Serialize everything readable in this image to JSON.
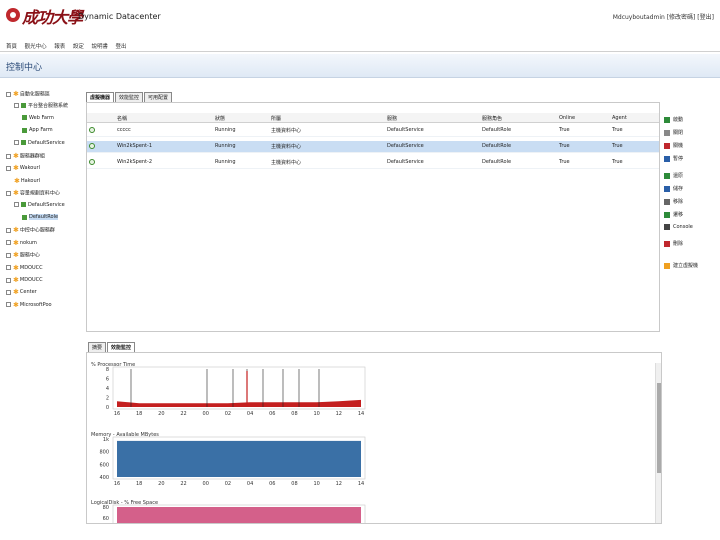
{
  "header": {
    "logo_text": "成功大學",
    "app_title": "Dynamic Datacenter",
    "user": "Mdcuyboutadmin",
    "user_links": "[修改密碼] [登出]"
  },
  "menu": [
    "首頁",
    "觀光中心",
    "報表",
    "設定",
    "說明書",
    "登出"
  ],
  "section_title": "控制中心",
  "tree": [
    {
      "label": "自動化服務區",
      "icon": "star",
      "expander": true
    },
    {
      "label": "平台整合服務系統",
      "icon": "node",
      "expander": true
    },
    {
      "label": "Web Farm",
      "icon": "node"
    },
    {
      "label": "App Farm",
      "icon": "node"
    },
    {
      "label": "DefaultService",
      "icon": "node",
      "expander": true
    },
    {
      "label": "服務器群組",
      "icon": "star",
      "expander": true
    },
    {
      "label": "Wakourl",
      "icon": "star",
      "expander": true
    },
    {
      "label": "Hakourl",
      "icon": "star"
    },
    {
      "label": "容量規劃資料中心",
      "icon": "star",
      "expander": true
    },
    {
      "label": "DefaultService",
      "icon": "node",
      "expander": true
    },
    {
      "label": "DefaultRole",
      "icon": "node",
      "selected": true
    },
    {
      "label": "中控中心服務群",
      "icon": "star",
      "expander": true
    },
    {
      "label": "nokum",
      "icon": "star",
      "expander": true
    },
    {
      "label": "服務中心",
      "icon": "star",
      "expander": true
    },
    {
      "label": "MDOUCC",
      "icon": "star",
      "expander": true
    },
    {
      "label": "MDOUCC",
      "icon": "star",
      "expander": true
    },
    {
      "label": "Center",
      "icon": "star",
      "expander": true
    },
    {
      "label": "MicrosoftPoo",
      "icon": "star",
      "expander": true
    }
  ],
  "top_tabs": [
    "虛擬機器",
    "效能監控",
    "可用配置"
  ],
  "grid": {
    "columns": [
      "",
      "名稱",
      "狀態",
      "所屬",
      "服務",
      "服務角色",
      "Online",
      "Agent"
    ],
    "rows": [
      {
        "name": "ccccc",
        "status": "Running",
        "owner": "主機資料中心",
        "service": "DefaultService",
        "role": "DefaultRole",
        "online": "True",
        "agent": "True",
        "selected": false
      },
      {
        "name": "Win2kSpent-1",
        "status": "Running",
        "owner": "主機資料中心",
        "service": "DefaultService",
        "role": "DefaultRole",
        "online": "True",
        "agent": "True",
        "selected": true
      },
      {
        "name": "Win2kSpent-2",
        "status": "Running",
        "owner": "主機資料中心",
        "service": "DefaultService",
        "role": "DefaultRole",
        "online": "True",
        "agent": "True",
        "selected": false
      }
    ]
  },
  "actions": [
    {
      "label": "啟動",
      "color": "#2e8b3a"
    },
    {
      "label": "關閉",
      "color": "#888888"
    },
    {
      "label": "關機",
      "color": "#c0282d"
    },
    {
      "label": "暫停",
      "color": "#2a5fa8"
    },
    {
      "label": "還原",
      "color": "#2e8b3a"
    },
    {
      "label": "儲存",
      "color": "#2a5fa8"
    },
    {
      "label": "移除",
      "color": "#666666"
    },
    {
      "label": "遷移",
      "color": "#2e8b3a"
    },
    {
      "label": "Console",
      "color": "#444444"
    },
    {
      "label": "刪除",
      "color": "#c0282d"
    },
    {
      "label": "建立虛擬機",
      "color": "#f0a020"
    }
  ],
  "bottom_tabs": [
    "摘要",
    "效能監控"
  ],
  "perf": {
    "chart1_title": "% Processor Time",
    "chart2_title": "Memory - Available MBytes",
    "chart3_title": "LogicalDisk - % Free Space",
    "chart1_yticks": [
      "8",
      "6",
      "4",
      "2",
      "0"
    ],
    "chart2_yticks": [
      "1k",
      "800",
      "600",
      "400"
    ],
    "chart3_yticks": [
      "80",
      "60",
      "40"
    ],
    "xticks": [
      "16",
      "18",
      "20",
      "22",
      "00",
      "02",
      "04",
      "06",
      "08",
      "10",
      "12",
      "14"
    ],
    "colors": {
      "cpu": "#c41f1f",
      "memory": "#3a70a6",
      "disk": "#d4608a"
    }
  },
  "chart_data": [
    {
      "type": "area",
      "title": "% Processor Time",
      "x": [
        "16",
        "18",
        "20",
        "22",
        "00",
        "02",
        "04",
        "06",
        "08",
        "10",
        "12",
        "14"
      ],
      "series": [
        {
          "values": [
            1.2,
            0.8,
            0.8,
            0.8,
            0.8,
            0.8,
            1.0,
            1.0,
            1.0,
            1.0,
            1.2,
            1.5
          ]
        }
      ],
      "ylim": [
        0,
        8
      ]
    },
    {
      "type": "area",
      "title": "Memory - Available MBytes",
      "x": [
        "16",
        "18",
        "20",
        "22",
        "00",
        "02",
        "04",
        "06",
        "08",
        "10",
        "12",
        "14"
      ],
      "series": [
        {
          "values": [
            950,
            950,
            950,
            950,
            950,
            950,
            950,
            950,
            950,
            950,
            950,
            950
          ]
        }
      ],
      "ylim": [
        0,
        1000
      ]
    },
    {
      "type": "area",
      "title": "LogicalDisk - % Free Space",
      "x": [
        "16",
        "18",
        "20",
        "22",
        "00",
        "02",
        "04",
        "06",
        "08",
        "10",
        "12",
        "14"
      ],
      "series": [
        {
          "values": [
            80,
            80,
            80,
            80,
            80,
            80,
            80,
            80,
            80,
            80,
            80,
            80
          ]
        }
      ],
      "ylim": [
        0,
        80
      ]
    }
  ]
}
